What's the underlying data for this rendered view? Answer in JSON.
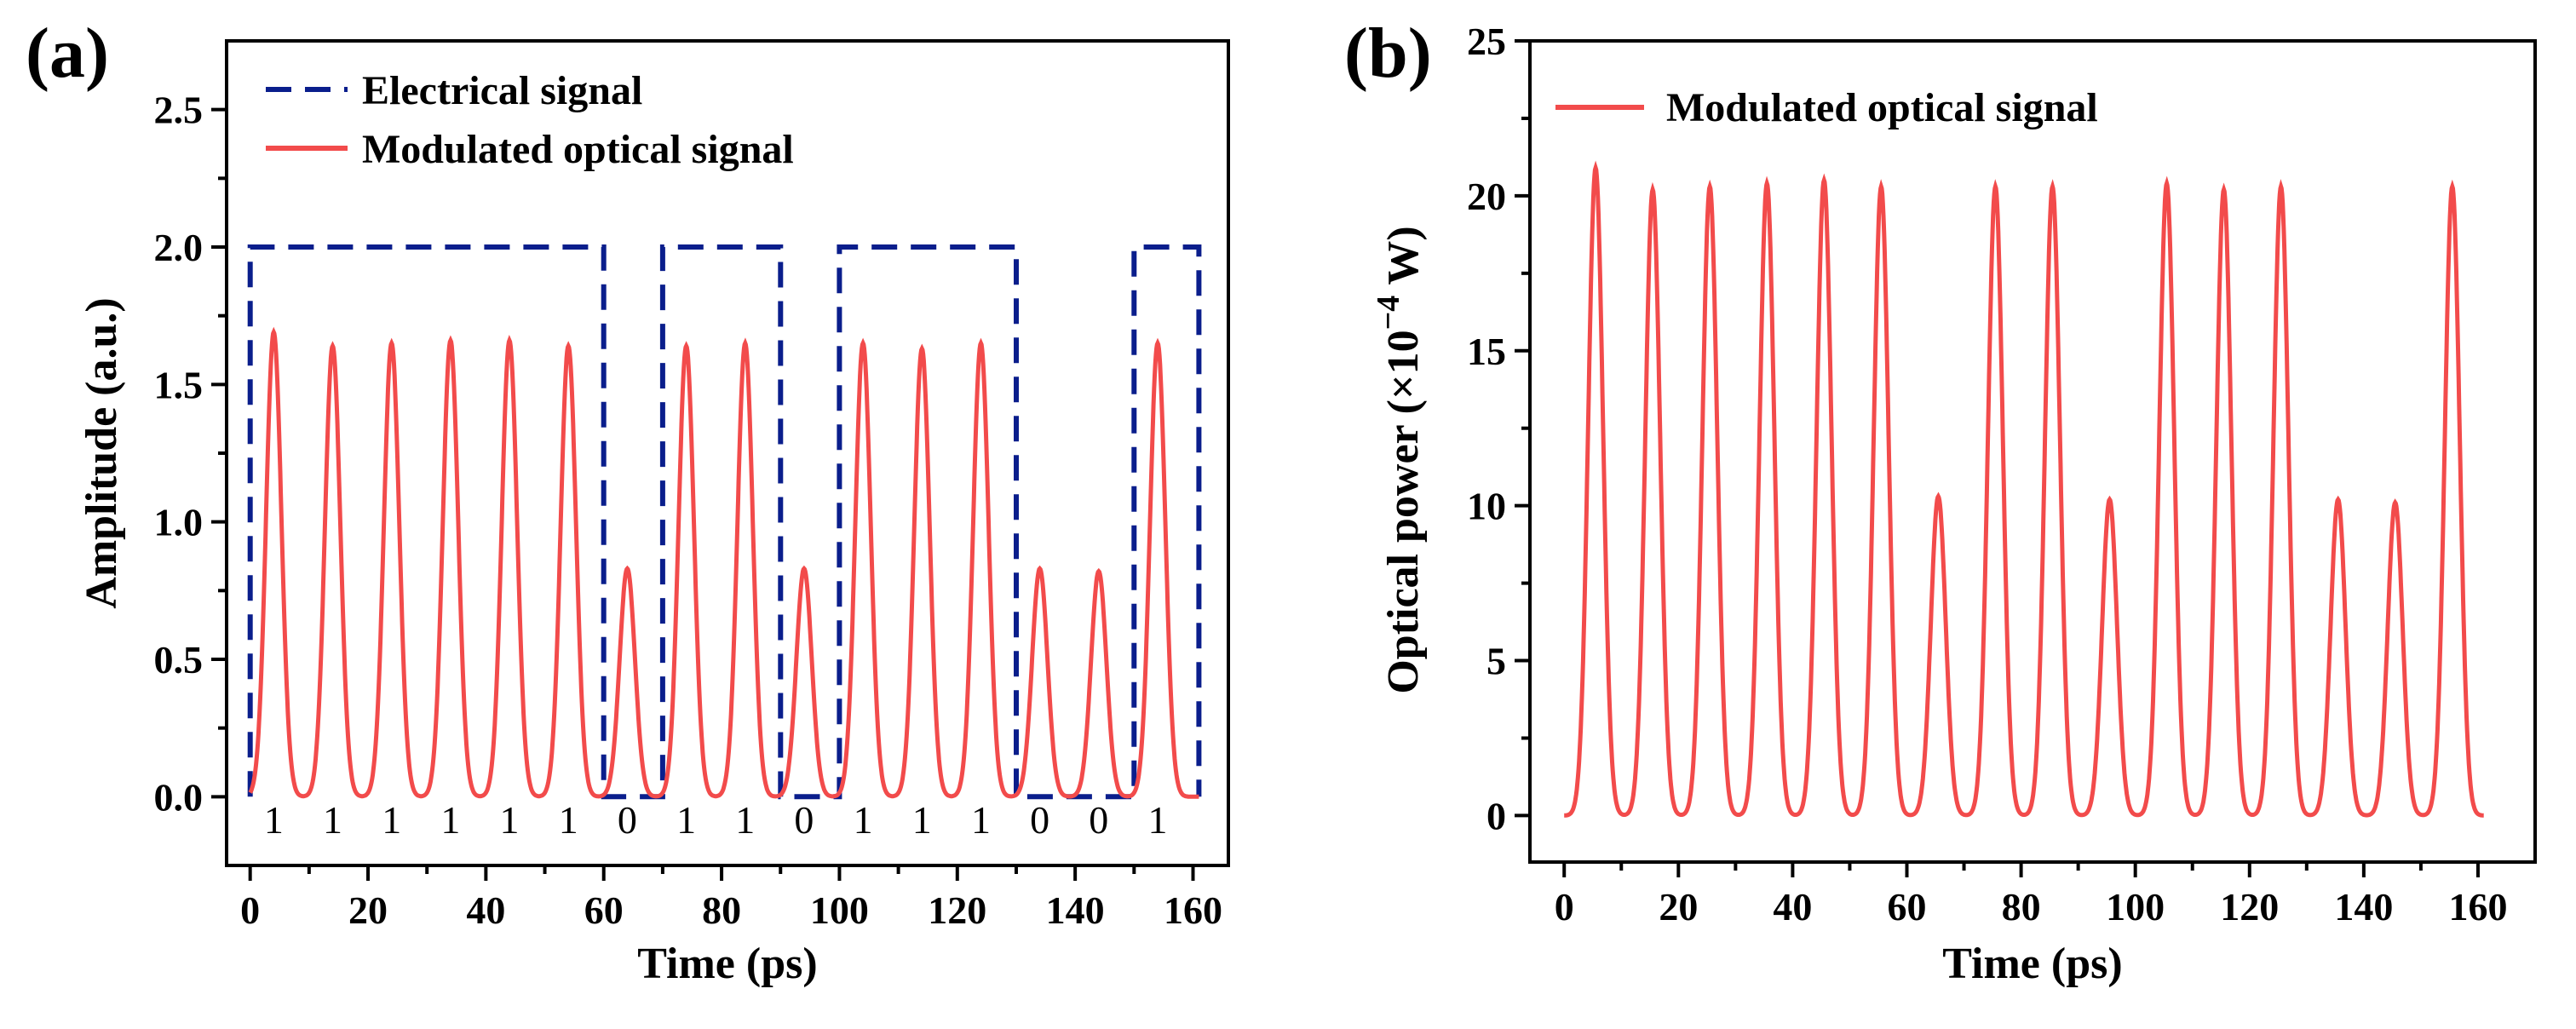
{
  "colors": {
    "electrical": "#0a1e8c",
    "optical": "#f24b4b"
  },
  "chart_data": [
    {
      "panel_label": "(a)",
      "type": "line",
      "title": "",
      "xlabel": "Time (ps)",
      "ylabel": "Amplitude (a.u.)",
      "xlim": [
        -4,
        166
      ],
      "ylim": [
        -0.25,
        2.75
      ],
      "xticks": [
        0,
        20,
        40,
        60,
        80,
        100,
        120,
        140,
        160
      ],
      "yticks": [
        0.0,
        0.5,
        1.0,
        1.5,
        2.0,
        2.5
      ],
      "xtick_labels": [
        "0",
        "20",
        "40",
        "60",
        "80",
        "100",
        "120",
        "140",
        "160"
      ],
      "ytick_labels": [
        "0.0",
        "0.5",
        "1.0",
        "1.5",
        "2.0",
        "2.5"
      ],
      "legend_position": "top-left",
      "series": [
        {
          "name": "Electrical signal",
          "style": "dashed",
          "x": [
            0,
            0,
            60,
            60,
            70,
            70,
            90,
            90,
            100,
            100,
            130,
            130,
            150,
            150,
            161,
            161
          ],
          "y": [
            0,
            2,
            2,
            0,
            0,
            2,
            2,
            0,
            0,
            2,
            2,
            0,
            0,
            2,
            2,
            0
          ]
        },
        {
          "name": "Modulated optical signal",
          "style": "solid",
          "peak_times": [
            4,
            14,
            24,
            34,
            44,
            54,
            64,
            74,
            84,
            94,
            104,
            114,
            124,
            134,
            144,
            154
          ],
          "peak_values": [
            1.69,
            1.64,
            1.65,
            1.66,
            1.66,
            1.64,
            0.83,
            1.64,
            1.65,
            0.83,
            1.65,
            1.63,
            1.65,
            0.83,
            0.82,
            1.65
          ],
          "x_end": 161
        }
      ],
      "annotations": [
        {
          "text": "1",
          "x": 4
        },
        {
          "text": "1",
          "x": 14
        },
        {
          "text": "1",
          "x": 24
        },
        {
          "text": "1",
          "x": 34
        },
        {
          "text": "1",
          "x": 44
        },
        {
          "text": "1",
          "x": 54
        },
        {
          "text": "0",
          "x": 64
        },
        {
          "text": "1",
          "x": 74
        },
        {
          "text": "1",
          "x": 84
        },
        {
          "text": "0",
          "x": 94
        },
        {
          "text": "1",
          "x": 104
        },
        {
          "text": "1",
          "x": 114
        },
        {
          "text": "1",
          "x": 124
        },
        {
          "text": "0",
          "x": 134
        },
        {
          "text": "0",
          "x": 144
        },
        {
          "text": "1",
          "x": 154
        }
      ]
    },
    {
      "panel_label": "(b)",
      "type": "line",
      "title": "",
      "xlabel": "Time (ps)",
      "ylabel": "Optical power (×10",
      "ylabel_superscript": "−4",
      "ylabel_suffix": " W)",
      "xlim": [
        -6,
        170
      ],
      "ylim": [
        -1.5,
        25
      ],
      "xticks": [
        0,
        20,
        40,
        60,
        80,
        100,
        120,
        140,
        160
      ],
      "yticks": [
        0,
        5,
        10,
        15,
        20,
        25
      ],
      "xtick_labels": [
        "0",
        "20",
        "40",
        "60",
        "80",
        "100",
        "120",
        "140",
        "160"
      ],
      "ytick_labels": [
        "0",
        "5",
        "10",
        "15",
        "20",
        "25"
      ],
      "legend_position": "top-left",
      "series": [
        {
          "name": "Modulated optical signal",
          "style": "solid",
          "peak_times": [
            5.5,
            15.5,
            25.5,
            35.5,
            45.5,
            55.5,
            65.5,
            75.5,
            85.5,
            95.5,
            105.5,
            115.5,
            125.5,
            135.5,
            145.5,
            155.5
          ],
          "peak_values": [
            20.9,
            20.2,
            20.3,
            20.4,
            20.5,
            20.3,
            10.3,
            20.3,
            20.3,
            10.2,
            20.4,
            20.2,
            20.3,
            10.2,
            10.1,
            20.3
          ],
          "x_end": 161
        }
      ]
    }
  ]
}
